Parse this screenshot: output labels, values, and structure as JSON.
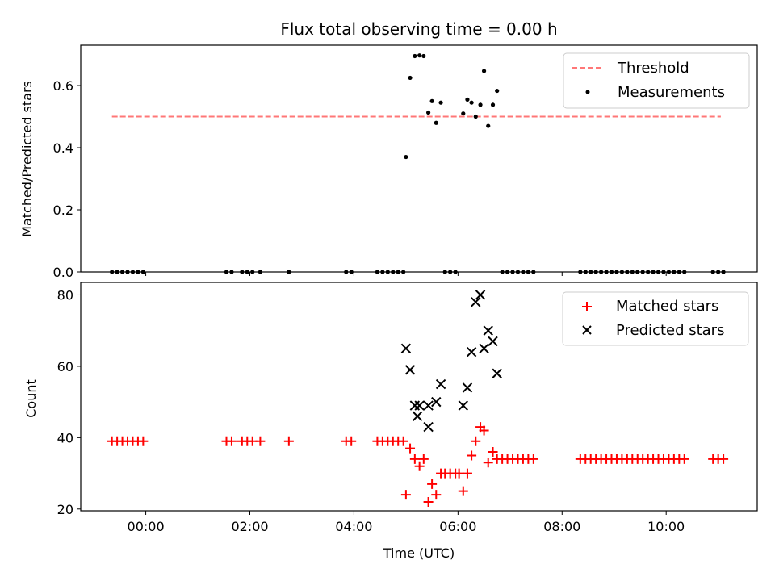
{
  "title": "Flux total observing time = 0.00 h",
  "colors": {
    "threshold": "#ff7777",
    "measurement": "#000000",
    "matched": "#ff0000",
    "predicted": "#000000"
  },
  "chart_data": [
    {
      "type": "scatter",
      "panel": "top",
      "title": "Flux total observing time = 0.00 h",
      "xlabel": "",
      "ylabel": "Matched/Predicted stars",
      "xlim": [
        -1.25,
        11.75
      ],
      "ylim": [
        0,
        0.73
      ],
      "xticks": [
        0,
        2,
        4,
        6,
        8,
        10
      ],
      "yticks": [
        0.0,
        0.2,
        0.4,
        0.6
      ],
      "ytick_labels": [
        "0.0",
        "0.2",
        "0.4",
        "0.6"
      ],
      "legend": {
        "placement": "top-right",
        "entries": [
          "Threshold",
          "Measurements"
        ]
      },
      "threshold": {
        "name": "Threshold",
        "style": "dashed",
        "value": 0.5,
        "x_range": [
          -0.65,
          11.05
        ]
      },
      "series": [
        {
          "name": "Measurements",
          "marker": "dot",
          "points": [
            [
              -0.65,
              0
            ],
            [
              -0.55,
              0
            ],
            [
              -0.45,
              0
            ],
            [
              -0.35,
              0
            ],
            [
              -0.25,
              0
            ],
            [
              -0.15,
              0
            ],
            [
              -0.05,
              0
            ],
            [
              1.55,
              0
            ],
            [
              1.65,
              0
            ],
            [
              1.85,
              0
            ],
            [
              1.95,
              0
            ],
            [
              2.05,
              0
            ],
            [
              2.2,
              0
            ],
            [
              2.75,
              0
            ],
            [
              3.85,
              0
            ],
            [
              3.95,
              0
            ],
            [
              4.45,
              0
            ],
            [
              4.55,
              0
            ],
            [
              4.65,
              0
            ],
            [
              4.75,
              0
            ],
            [
              4.85,
              0
            ],
            [
              4.95,
              0
            ],
            [
              5.0,
              0.37
            ],
            [
              5.08,
              0.625
            ],
            [
              5.17,
              0.695
            ],
            [
              5.26,
              0.697
            ],
            [
              5.34,
              0.695
            ],
            [
              5.43,
              0.513
            ],
            [
              5.5,
              0.55
            ],
            [
              5.58,
              0.48
            ],
            [
              5.67,
              0.545
            ],
            [
              5.75,
              0
            ],
            [
              5.85,
              0
            ],
            [
              5.95,
              0
            ],
            [
              6.1,
              0.51
            ],
            [
              6.18,
              0.555
            ],
            [
              6.26,
              0.545
            ],
            [
              6.34,
              0.5
            ],
            [
              6.43,
              0.538
            ],
            [
              6.5,
              0.647
            ],
            [
              6.58,
              0.47
            ],
            [
              6.67,
              0.538
            ],
            [
              6.75,
              0.583
            ],
            [
              6.85,
              0
            ],
            [
              6.95,
              0
            ],
            [
              7.05,
              0
            ],
            [
              7.15,
              0
            ],
            [
              7.25,
              0
            ],
            [
              7.35,
              0
            ],
            [
              7.45,
              0
            ],
            [
              8.35,
              0
            ],
            [
              8.45,
              0
            ],
            [
              8.55,
              0
            ],
            [
              8.65,
              0
            ],
            [
              8.75,
              0
            ],
            [
              8.85,
              0
            ],
            [
              8.95,
              0
            ],
            [
              9.05,
              0
            ],
            [
              9.15,
              0
            ],
            [
              9.25,
              0
            ],
            [
              9.35,
              0
            ],
            [
              9.45,
              0
            ],
            [
              9.55,
              0
            ],
            [
              9.65,
              0
            ],
            [
              9.75,
              0
            ],
            [
              9.85,
              0
            ],
            [
              9.95,
              0
            ],
            [
              10.05,
              0
            ],
            [
              10.15,
              0
            ],
            [
              10.25,
              0
            ],
            [
              10.35,
              0
            ],
            [
              10.9,
              0
            ],
            [
              11.0,
              0
            ],
            [
              11.1,
              0
            ]
          ]
        }
      ]
    },
    {
      "type": "scatter",
      "panel": "bottom",
      "xlabel": "Time (UTC)",
      "ylabel": "Count",
      "xlim": [
        -1.25,
        11.75
      ],
      "ylim": [
        19.5,
        83.5
      ],
      "xticks": [
        0,
        2,
        4,
        6,
        8,
        10
      ],
      "xtick_labels": [
        "00:00",
        "02:00",
        "04:00",
        "06:00",
        "08:00",
        "10:00"
      ],
      "yticks": [
        20,
        40,
        60,
        80
      ],
      "ytick_labels": [
        "20",
        "40",
        "60",
        "80"
      ],
      "legend": {
        "placement": "top-right",
        "entries": [
          "Matched stars",
          "Predicted stars"
        ]
      },
      "series": [
        {
          "name": "Matched stars",
          "marker": "plus",
          "points": [
            [
              -0.65,
              39
            ],
            [
              -0.55,
              39
            ],
            [
              -0.45,
              39
            ],
            [
              -0.35,
              39
            ],
            [
              -0.25,
              39
            ],
            [
              -0.15,
              39
            ],
            [
              -0.05,
              39
            ],
            [
              1.55,
              39
            ],
            [
              1.65,
              39
            ],
            [
              1.85,
              39
            ],
            [
              1.95,
              39
            ],
            [
              2.05,
              39
            ],
            [
              2.2,
              39
            ],
            [
              2.75,
              39
            ],
            [
              3.85,
              39
            ],
            [
              3.95,
              39
            ],
            [
              4.45,
              39
            ],
            [
              4.55,
              39
            ],
            [
              4.65,
              39
            ],
            [
              4.75,
              39
            ],
            [
              4.85,
              39
            ],
            [
              4.95,
              39
            ],
            [
              5.0,
              24
            ],
            [
              5.08,
              37
            ],
            [
              5.17,
              34
            ],
            [
              5.26,
              32
            ],
            [
              5.34,
              34
            ],
            [
              5.43,
              22
            ],
            [
              5.5,
              27
            ],
            [
              5.58,
              24
            ],
            [
              5.67,
              30
            ],
            [
              5.75,
              30
            ],
            [
              5.85,
              30
            ],
            [
              5.95,
              30
            ],
            [
              6.02,
              30
            ],
            [
              6.1,
              25
            ],
            [
              6.18,
              30
            ],
            [
              6.26,
              35
            ],
            [
              6.34,
              39
            ],
            [
              6.43,
              43
            ],
            [
              6.5,
              42
            ],
            [
              6.58,
              33
            ],
            [
              6.67,
              36
            ],
            [
              6.75,
              34
            ],
            [
              6.85,
              34
            ],
            [
              6.95,
              34
            ],
            [
              7.05,
              34
            ],
            [
              7.15,
              34
            ],
            [
              7.25,
              34
            ],
            [
              7.35,
              34
            ],
            [
              7.45,
              34
            ],
            [
              8.35,
              34
            ],
            [
              8.45,
              34
            ],
            [
              8.55,
              34
            ],
            [
              8.65,
              34
            ],
            [
              8.75,
              34
            ],
            [
              8.85,
              34
            ],
            [
              8.95,
              34
            ],
            [
              9.05,
              34
            ],
            [
              9.15,
              34
            ],
            [
              9.25,
              34
            ],
            [
              9.35,
              34
            ],
            [
              9.45,
              34
            ],
            [
              9.55,
              34
            ],
            [
              9.65,
              34
            ],
            [
              9.75,
              34
            ],
            [
              9.85,
              34
            ],
            [
              9.95,
              34
            ],
            [
              10.05,
              34
            ],
            [
              10.15,
              34
            ],
            [
              10.25,
              34
            ],
            [
              10.35,
              34
            ],
            [
              10.9,
              34
            ],
            [
              11.0,
              34
            ],
            [
              11.1,
              34
            ]
          ]
        },
        {
          "name": "Predicted stars",
          "marker": "x",
          "points": [
            [
              5.0,
              65
            ],
            [
              5.08,
              59
            ],
            [
              5.17,
              49
            ],
            [
              5.22,
              46
            ],
            [
              5.26,
              49
            ],
            [
              5.43,
              43
            ],
            [
              5.43,
              49
            ],
            [
              5.58,
              50
            ],
            [
              5.67,
              55
            ],
            [
              6.1,
              49
            ],
            [
              6.18,
              54
            ],
            [
              6.26,
              64
            ],
            [
              6.34,
              78
            ],
            [
              6.43,
              80
            ],
            [
              6.5,
              65
            ],
            [
              6.58,
              70
            ],
            [
              6.67,
              67
            ],
            [
              6.75,
              58
            ]
          ]
        }
      ]
    }
  ]
}
